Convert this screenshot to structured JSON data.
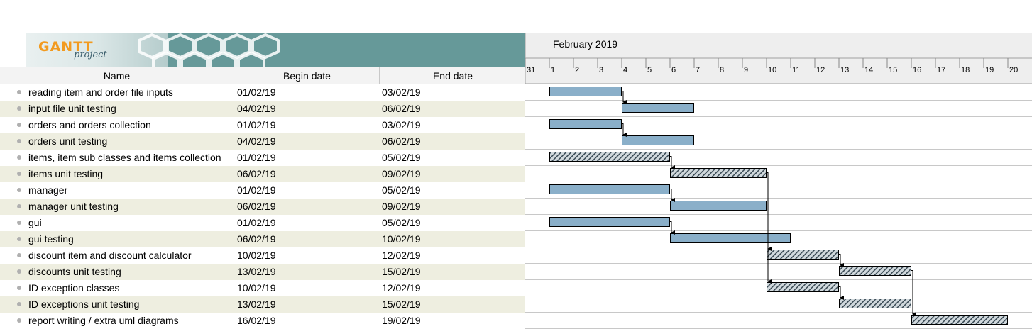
{
  "logo": {
    "brand": "GANTT",
    "sub": "project"
  },
  "columns": {
    "name": "Name",
    "begin": "Begin date",
    "end": "End date"
  },
  "timeline": {
    "month": "February 2019",
    "days": [
      "31",
      "1",
      "2",
      "3",
      "4",
      "5",
      "6",
      "7",
      "8",
      "9",
      "10",
      "11",
      "12",
      "13",
      "14",
      "15",
      "16",
      "17",
      "18",
      "19",
      "20"
    ]
  },
  "tasks": [
    {
      "name": "reading item and order file inputs",
      "begin": "01/02/19",
      "end": "03/02/19",
      "style": "plain"
    },
    {
      "name": "input file unit testing",
      "begin": "04/02/19",
      "end": "06/02/19",
      "style": "plain"
    },
    {
      "name": "orders and orders collection",
      "begin": "01/02/19",
      "end": "03/02/19",
      "style": "plain"
    },
    {
      "name": "orders unit testing",
      "begin": "04/02/19",
      "end": "06/02/19",
      "style": "plain"
    },
    {
      "name": "items, item sub classes and items collection",
      "begin": "01/02/19",
      "end": "05/02/19",
      "style": "hatched"
    },
    {
      "name": "items unit testing",
      "begin": "06/02/19",
      "end": "09/02/19",
      "style": "hatched"
    },
    {
      "name": "manager",
      "begin": "01/02/19",
      "end": "05/02/19",
      "style": "plain"
    },
    {
      "name": "manager unit testing",
      "begin": "06/02/19",
      "end": "09/02/19",
      "style": "plain"
    },
    {
      "name": "gui",
      "begin": "01/02/19",
      "end": "05/02/19",
      "style": "plain"
    },
    {
      "name": "gui testing",
      "begin": "06/02/19",
      "end": "10/02/19",
      "style": "plain"
    },
    {
      "name": "discount item and discount calculator",
      "begin": "10/02/19",
      "end": "12/02/19",
      "style": "hatched"
    },
    {
      "name": "discounts unit testing",
      "begin": "13/02/19",
      "end": "15/02/19",
      "style": "hatched"
    },
    {
      "name": "ID exception classes",
      "begin": "10/02/19",
      "end": "12/02/19",
      "style": "hatched"
    },
    {
      "name": "ID exceptions unit testing",
      "begin": "13/02/19",
      "end": "15/02/19",
      "style": "hatched"
    },
    {
      "name": "report writing / extra uml diagrams",
      "begin": "16/02/19",
      "end": "19/02/19",
      "style": "hatched"
    }
  ],
  "dependencies": [
    [
      0,
      1
    ],
    [
      2,
      3
    ],
    [
      4,
      5
    ],
    [
      6,
      7
    ],
    [
      8,
      9
    ],
    [
      5,
      10
    ],
    [
      10,
      11
    ],
    [
      5,
      12
    ],
    [
      12,
      13
    ],
    [
      11,
      14
    ]
  ],
  "colors": {
    "plain_bar": "#8aafc9",
    "hatched_bar": "#5a6e7a",
    "banner": "#669999",
    "alt_row": "#eeeee0"
  }
}
